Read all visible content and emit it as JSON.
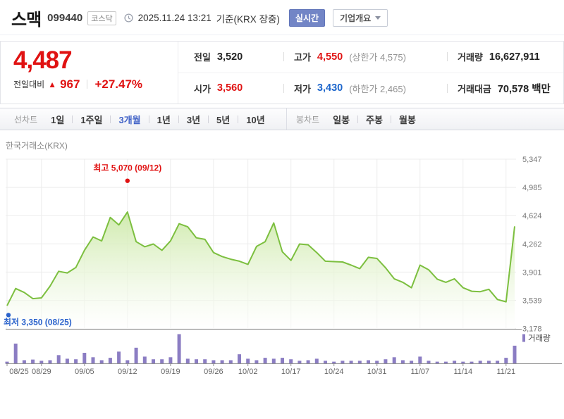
{
  "header": {
    "title": "스맥",
    "code": "099440",
    "market": "코스닥",
    "datetime": "2025.11.24 13:21",
    "basis": "기준(KRX 장중)",
    "realtime": "실시간",
    "overview": "기업개요"
  },
  "quote": {
    "price": "4,487",
    "change_label": "전일대비",
    "up_arrow": "▲",
    "change": "967",
    "change_pct": "+27.47%",
    "prev": {
      "label": "전일",
      "value": "3,520"
    },
    "high": {
      "label": "고가",
      "value": "4,550",
      "extra": "(상한가 4,575)"
    },
    "volume": {
      "label": "거래량",
      "value": "16,627,911"
    },
    "open": {
      "label": "시가",
      "value": "3,560"
    },
    "low": {
      "label": "저가",
      "value": "3,430",
      "extra": "(하한가 2,465)"
    },
    "amount": {
      "label": "거래대금",
      "value": "70,578 백만"
    }
  },
  "tabs": {
    "line": {
      "group_label": "선차트",
      "items": [
        {
          "label": "1일"
        },
        {
          "label": "1주일"
        },
        {
          "label": "3개월",
          "selected": true
        },
        {
          "label": "1년"
        },
        {
          "label": "3년"
        },
        {
          "label": "5년"
        },
        {
          "label": "10년"
        }
      ]
    },
    "candle": {
      "group_label": "봉차트",
      "items": [
        {
          "label": "일봉"
        },
        {
          "label": "주봉"
        },
        {
          "label": "월봉"
        }
      ]
    }
  },
  "chart_data": {
    "type": "line",
    "title": "한국거래소(KRX)",
    "ylim": [
      3178,
      5347
    ],
    "y_ticks": [
      5347,
      4985,
      4624,
      4262,
      3901,
      3539,
      3178
    ],
    "x_tick_labels": [
      "08/25",
      "08/29",
      "09/05",
      "09/12",
      "09/19",
      "09/26",
      "10/02",
      "10/17",
      "10/24",
      "10/31",
      "11/07",
      "11/14",
      "11/21"
    ],
    "x_tick_indices": [
      0,
      4,
      9,
      14,
      19,
      24,
      28,
      33,
      38,
      43,
      48,
      53,
      58
    ],
    "close": [
      3470,
      3690,
      3640,
      3560,
      3570,
      3720,
      3910,
      3890,
      3960,
      4180,
      4350,
      4300,
      4600,
      4505,
      4670,
      4290,
      4225,
      4260,
      4180,
      4300,
      4520,
      4480,
      4340,
      4320,
      4150,
      4100,
      4065,
      4040,
      4000,
      4230,
      4290,
      4530,
      4160,
      4050,
      4260,
      4250,
      4150,
      4040,
      4035,
      4030,
      3990,
      3945,
      4090,
      4075,
      3955,
      3815,
      3770,
      3700,
      3990,
      3930,
      3810,
      3770,
      3815,
      3700,
      3655,
      3650,
      3680,
      3550,
      3520,
      4487
    ],
    "volume_relative": [
      7,
      68,
      12,
      14,
      10,
      12,
      29,
      17,
      15,
      37,
      22,
      12,
      20,
      41,
      12,
      54,
      24,
      15,
      15,
      22,
      100,
      17,
      15,
      15,
      12,
      12,
      12,
      32,
      17,
      12,
      20,
      17,
      20,
      15,
      10,
      12,
      17,
      10,
      7,
      10,
      10,
      10,
      12,
      10,
      15,
      22,
      12,
      10,
      24,
      10,
      7,
      7,
      10,
      7,
      7,
      10,
      10,
      10,
      20,
      61
    ],
    "volume_legend": "거래량",
    "annotations": [
      {
        "type": "high",
        "text": "최고 5,070 (09/12)",
        "value": 5070,
        "index": 14,
        "color": "#e01212"
      },
      {
        "type": "low",
        "text": "최저 3,350 (08/25)",
        "value": 3350,
        "index": 0,
        "color": "#2a62cc"
      }
    ],
    "colors": {
      "line": "#7cbf3f",
      "area_top": "#cde9a9",
      "area_bottom": "#ffffff",
      "volume_bar": "#8b7dc3",
      "grid": "#ececec",
      "axis": "#8f8f8f",
      "tick_label": "#666666",
      "y_label": "#777777"
    }
  }
}
